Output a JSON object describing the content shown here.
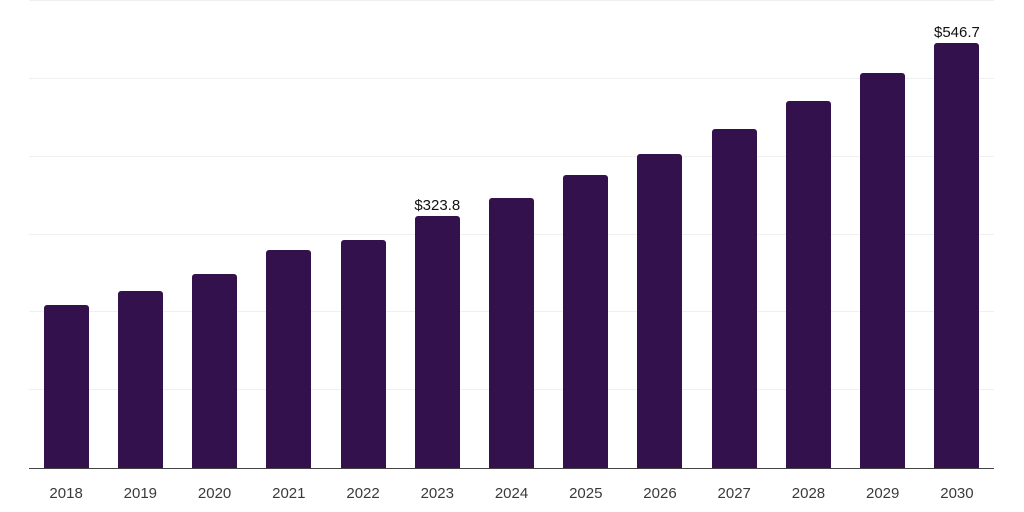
{
  "chart_data": {
    "type": "bar",
    "categories": [
      "2018",
      "2019",
      "2020",
      "2021",
      "2022",
      "2023",
      "2024",
      "2025",
      "2026",
      "2027",
      "2028",
      "2029",
      "2030"
    ],
    "values": [
      209,
      228,
      249,
      280,
      293,
      323.8,
      347,
      376,
      404,
      436,
      471,
      507,
      546.7
    ],
    "value_labels": [
      "",
      "",
      "",
      "",
      "",
      "$323.8",
      "",
      "",
      "",
      "",
      "",
      "",
      "$546.7"
    ],
    "ylim": [
      0,
      600
    ],
    "gridline_step": 100,
    "grid": true,
    "legend": false,
    "colors": {
      "bar": "#33114c",
      "gridline": "#f0f0f0",
      "axis_line": "#444444",
      "tick_label": "#3a3a3a",
      "data_label": "#111111",
      "background": "#ffffff"
    }
  }
}
